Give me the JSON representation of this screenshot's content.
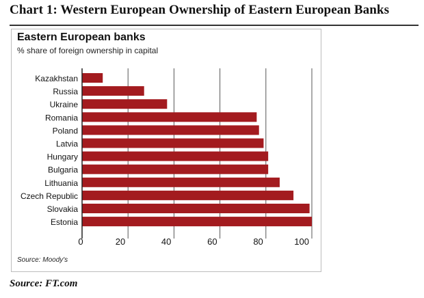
{
  "header": {
    "title": "Chart 1:  Western European Ownership of Eastern European Banks"
  },
  "panel": {
    "source": "Source: Moody's"
  },
  "footer": {
    "source": "Source:  FT.com"
  },
  "colors": {
    "bar": "#a31b1f",
    "axis": "#222222",
    "grid": "#555555"
  },
  "chart_data": {
    "type": "bar",
    "orientation": "horizontal",
    "title": "Eastern European banks",
    "subtitle": "% share of foreign ownership in capital",
    "categories": [
      "Kazakhstan",
      "Russia",
      "Ukraine",
      "Romania",
      "Poland",
      "Latvia",
      "Hungary",
      "Bulgaria",
      "Lithuania",
      "Czech Republic",
      "Slovakia",
      "Estonia"
    ],
    "values": [
      9,
      27,
      37,
      76,
      77,
      79,
      81,
      81,
      86,
      92,
      99,
      100
    ],
    "xlim": [
      0,
      100
    ],
    "xticks": [
      "0",
      "20",
      "40",
      "60",
      "80",
      "100"
    ],
    "grid": "vertical"
  }
}
